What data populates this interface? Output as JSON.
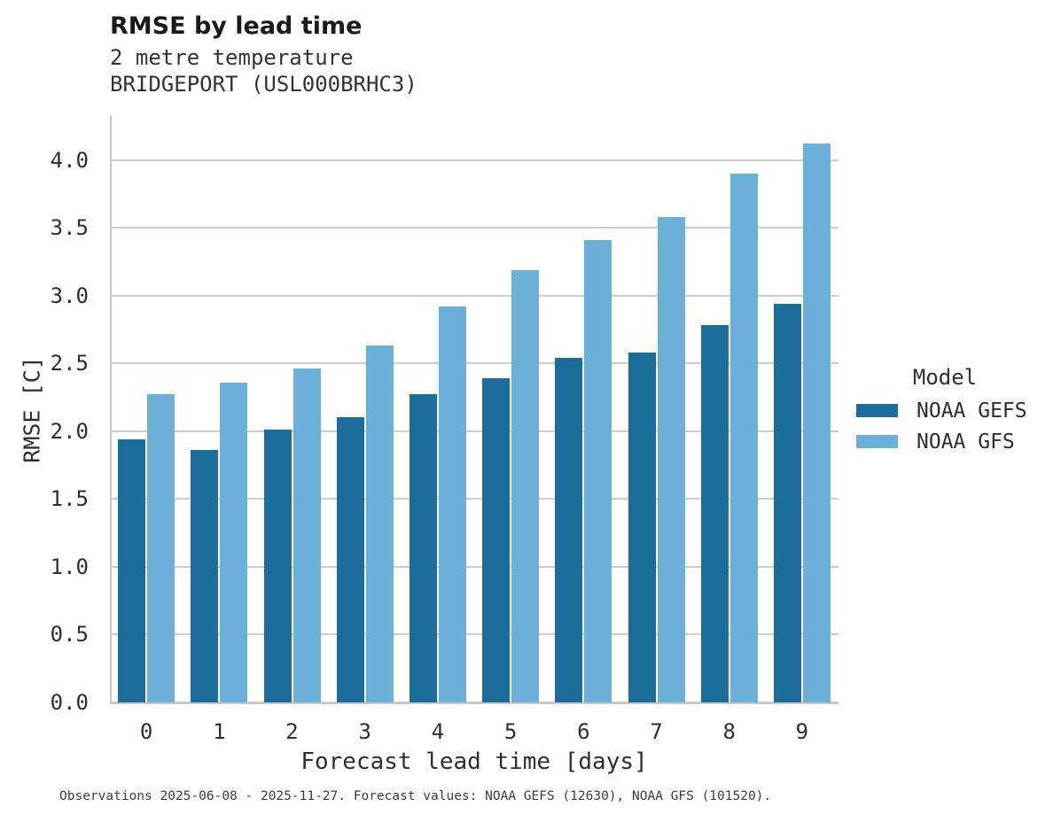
{
  "header": {
    "title": "RMSE by lead time",
    "subtitle1": "2 metre temperature",
    "subtitle2": "BRIDGEPORT (USL000BRHC3)"
  },
  "chart_data": {
    "type": "bar",
    "title": "RMSE by lead time",
    "subtitle": "2 metre temperature — BRIDGEPORT (USL000BRHC3)",
    "categories": [
      "0",
      "1",
      "2",
      "3",
      "4",
      "5",
      "6",
      "7",
      "8",
      "9"
    ],
    "series": [
      {
        "name": "NOAA GEFS",
        "color": "#1d6d9c",
        "values": [
          1.94,
          1.86,
          2.01,
          2.1,
          2.27,
          2.39,
          2.54,
          2.58,
          2.78,
          2.94
        ]
      },
      {
        "name": "NOAA GFS",
        "color": "#6bb0d8",
        "values": [
          2.27,
          2.36,
          2.46,
          2.63,
          2.92,
          3.19,
          3.41,
          3.58,
          3.9,
          4.12
        ]
      }
    ],
    "xlabel": "Forecast lead time [days]",
    "ylabel": "RMSE [C]",
    "ylim": [
      0,
      4.33
    ],
    "yticks": [
      0.0,
      0.5,
      1.0,
      1.5,
      2.0,
      2.5,
      3.0,
      3.5,
      4.0
    ],
    "grid": "horizontal",
    "grid_color": "#cccccc",
    "legend_title": "Model",
    "legend_position": "right"
  },
  "footer": {
    "note": "Observations 2025-06-08 - 2025-11-27. Forecast values: NOAA GEFS (12630), NOAA GFS (101520)."
  }
}
